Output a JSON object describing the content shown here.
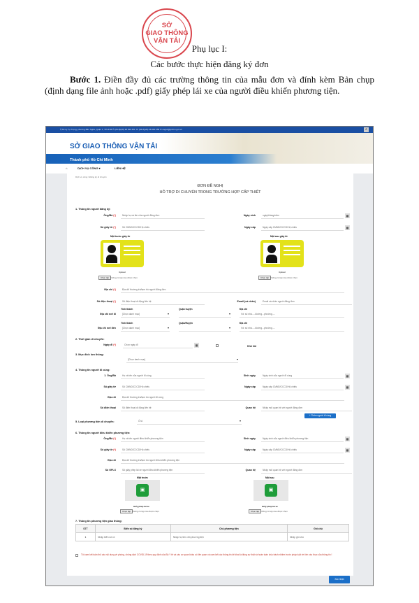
{
  "stamp": {
    "text": "CỘNG HÒA X.H.C.N VIỆT NAM · SỞ GIAO THÔNG VẬN TẢI · THÀNH PHỐ HỒ CHÍ MINH",
    "line1": "SỞ",
    "line2": "GIAO THÔNG",
    "line3": "VẬN TẢI",
    "color": "#d3262e"
  },
  "doc": {
    "appendix": "Phụ lục I:",
    "subtitle": "Các bước thực hiện đăng ký đơn",
    "step_bold": "Bước 1.",
    "step_text": " Điền đầy đủ các trường thông tin của mẫu đơn và đính kèm Bản chụp (định dạng file ảnh hoặc .pdf) giấy phép lái xe của người điều khiển phương tiện."
  },
  "site": {
    "topbar": "⚲ 63 Lý Tự Trọng, phường Bến Nghé, Quận 1, TP.HCM   ✆ (84-8)(28) 38 290 451   ☏ (84-8)(28) 38 290 458   ✉ sogtvt@tphcm.gov.vn",
    "search_icon": "search-icon",
    "brand": "SỞ GIAO THÔNG VẬN TẢI",
    "city": "Thành phố Hồ Chí Minh",
    "brand_color": "#1b5fb5",
    "nav": {
      "home_icon": "home-icon",
      "services": "DỊCH VỤ CÔNG ▾",
      "contact": "LIÊN HỆ"
    },
    "breadcrumb": [
      "Dịch vụ công",
      "Đăng ký di chuyển"
    ]
  },
  "form": {
    "title1": "ĐƠN ĐỀ NGHỊ",
    "title2": "HỖ TRỢ DI CHUYỂN TRONG TRƯỜNG HỢP CẤP THIẾT",
    "req": "(*)",
    "s1": "1. Thông tin người đăng ký:",
    "s1f": {
      "name_l": "Ông/Bà",
      "name_p": "Nhập họ và tên của người đăng đơn",
      "dob_l": "Ngày sinh",
      "dob_p": "ngày/tháng/năm",
      "id_l": "Số giấy tờ",
      "id_p": "Số CMND/CCCD/Hộ chiếu",
      "issue_l": "Ngày cấp",
      "issue_p": "Ngày cấp CMND/CCCD/Hộ chiếu",
      "front": "Mặt trước giấy tờ",
      "back": "Mặt sau giấy tờ",
      "upload": "Upload",
      "choose": "Chọn tệp",
      "nofile": "Không có tệp nào được chọn",
      "addr_l": "Địa chỉ",
      "addr_p": "Địa chỉ thường trú/tạm trú người đăng đơn",
      "phone_l": "Số điện thoại",
      "phone_p": "Số điện thoại di động liên hệ",
      "email_l": "Email (cá nhân)",
      "email_p": "Email cá nhân người đăng đơn",
      "from_l": "Địa chỉ nơi đi",
      "to_l": "Địa chỉ nơi đến",
      "prov": "Tỉnh thành",
      "dist": "Quận huyện",
      "dist2": "Quận/Huyện",
      "addr": "Địa chỉ",
      "select_p": "[Chọn danh mục]",
      "street_p": "Vd: số nhà.....đường...phường....."
    },
    "s2": "2. Thời gian di chuyển:",
    "date_l": "Ngày đi",
    "date_p": "Chọn ngày đi",
    "round": "Khứ hồi",
    "s3": "3. Mục đích lưu thông:",
    "purpose_p": "[Chọn danh mục]",
    "s4": "4. Thông tin người đi cùng:",
    "s4f": {
      "name_l": "1. Ông/Bà",
      "name_p": "Họ và tên của người đi cùng",
      "dob_l": "Sinh ngày",
      "dob_p": "Ngày sinh của người đi cùng",
      "id_l": "Số giấy tờ",
      "id_p": "Số CMND/CCCD/Hộ chiếu",
      "issue_l": "Ngày cấp",
      "issue_p": "Ngày cấp CMND/CCCD/Hộ chiếu",
      "addr_l": "Địa chỉ",
      "addr_p": "Địa chỉ thường trú/tạm trú người đi cùng",
      "phone_l": "Số điện thoại",
      "phone_p": "Số điện thoại di động liên hệ",
      "rel_l": "Quan hệ",
      "rel_p": "Nhập mối quan hệ với người đăng đơn",
      "add_btn": "+ Thêm người đi cùng"
    },
    "s5": "5. Loại phương tiện di chuyển:",
    "vehicle": "Ô tô",
    "s6": "6. Thông tin người điều khiển phương tiện:",
    "s6f": {
      "name_l": "Ông/Bà",
      "name_p": "Họ và tên người điều khiển phương tiện",
      "dob_l": "Sinh ngày",
      "dob_p": "Ngày sinh của người điều khiển phương tiện",
      "id_l": "Số giấy tờ",
      "id_p": "Số CMND/CCCD/Hộ chiếu",
      "issue_l": "Ngày cấp",
      "issue_p": "Ngày cấp CMND/CCCD/Hộ chiếu",
      "addr_l": "Địa chỉ",
      "addr_p": "Địa chỉ thường trú/tạm trú người điều khiển phương tiện",
      "lic_l": "Số GPLX",
      "lic_p": "Số giấy phép lái xe người điều khiển phương tiện",
      "rel_l": "Quan hệ",
      "rel_p": "Nhập mối quan hệ với người đăng đơn",
      "front": "Mặt trước",
      "back": "Mặt sau",
      "lic_doc": "Giấy phép lái xe",
      "choose": "Chọn tệp",
      "nofile": "Không có tệp nào được chọn"
    },
    "s7": "7. Thông tin phương tiện giao thông:",
    "table": {
      "headers": [
        "STT",
        "Biển số đăng ký",
        "Chủ phương tiện",
        "Ghi chú"
      ],
      "rows": [
        [
          "1",
          "Nhập biển số xe",
          "Nhập họ tên chủ phương tiện",
          "Nhập ghi chú"
        ]
      ]
    },
    "commit": "Tôi cam kết tuân thủ các nội dung về phòng, chống dịch COVID-19 theo quy định của Bộ Y tế và các cơ quan khác có liên quan và cam kết các thông tin kê khai là đúng sự thật và hoàn toàn chịu trách nhiệm trước pháp luật về tính xác thực của thông tin !",
    "submit": "Xác nhận",
    "accent": "#1b6fc8"
  }
}
